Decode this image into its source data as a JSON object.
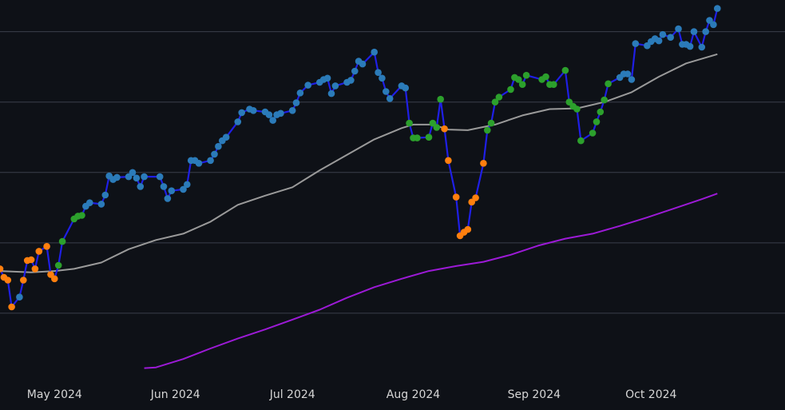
{
  "chart_data": {
    "type": "line",
    "title": "",
    "xlabel": "",
    "ylabel": "",
    "grid": "horizontal",
    "legend": "none",
    "x_ticks": [
      {
        "date": "2024-05-01",
        "label": "May 2024"
      },
      {
        "date": "2024-06-01",
        "label": "Jun 2024"
      },
      {
        "date": "2024-07-01",
        "label": "Jul 2024"
      },
      {
        "date": "2024-08-01",
        "label": "Aug 2024"
      },
      {
        "date": "2024-09-01",
        "label": "Sep 2024"
      },
      {
        "date": "2024-10-01",
        "label": "Oct 2024"
      }
    ],
    "xlim": [
      "2024-04-17",
      "2024-10-29"
    ],
    "y_gridlines": [
      1,
      2,
      3,
      4,
      5
    ],
    "ylim": [
      0,
      5.45
    ],
    "point_color_key": {
      "b": "#2b7bb9",
      "g": "#2ca02c",
      "o": "#ff7f0e"
    },
    "series": [
      {
        "role": "price",
        "color": "#1f1fe6",
        "with_points": true,
        "points": [
          [
            "2024-04-17",
            1.63,
            "o"
          ],
          [
            "2024-04-18",
            1.51,
            "o"
          ],
          [
            "2024-04-19",
            1.47,
            "o"
          ],
          [
            "2024-04-20",
            1.09,
            "o"
          ],
          [
            "2024-04-22",
            1.23,
            "b"
          ],
          [
            "2024-04-23",
            1.47,
            "o"
          ],
          [
            "2024-04-24",
            1.75,
            "o"
          ],
          [
            "2024-04-25",
            1.76,
            "o"
          ],
          [
            "2024-04-26",
            1.63,
            "o"
          ],
          [
            "2024-04-27",
            1.88,
            "o"
          ],
          [
            "2024-04-29",
            1.95,
            "o"
          ],
          [
            "2024-04-30",
            1.55,
            "o"
          ],
          [
            "2024-05-01",
            1.49,
            "o"
          ],
          [
            "2024-05-02",
            1.68,
            "g"
          ],
          [
            "2024-05-03",
            2.02,
            "g"
          ],
          [
            "2024-05-06",
            2.34,
            "g"
          ],
          [
            "2024-05-07",
            2.38,
            "g"
          ],
          [
            "2024-05-08",
            2.39,
            "g"
          ],
          [
            "2024-05-09",
            2.52,
            "b"
          ],
          [
            "2024-05-10",
            2.57,
            "b"
          ],
          [
            "2024-05-13",
            2.55,
            "b"
          ],
          [
            "2024-05-14",
            2.68,
            "b"
          ],
          [
            "2024-05-15",
            2.95,
            "b"
          ],
          [
            "2024-05-16",
            2.9,
            "b"
          ],
          [
            "2024-05-17",
            2.93,
            "b"
          ],
          [
            "2024-05-20",
            2.94,
            "b"
          ],
          [
            "2024-05-21",
            3.0,
            "b"
          ],
          [
            "2024-05-22",
            2.92,
            "b"
          ],
          [
            "2024-05-23",
            2.8,
            "b"
          ],
          [
            "2024-05-24",
            2.94,
            "b"
          ],
          [
            "2024-05-28",
            2.94,
            "b"
          ],
          [
            "2024-05-29",
            2.8,
            "b"
          ],
          [
            "2024-05-30",
            2.63,
            "b"
          ],
          [
            "2024-05-31",
            2.74,
            "b"
          ],
          [
            "2024-06-03",
            2.76,
            "b"
          ],
          [
            "2024-06-04",
            2.83,
            "b"
          ],
          [
            "2024-06-05",
            3.17,
            "b"
          ],
          [
            "2024-06-06",
            3.17,
            "b"
          ],
          [
            "2024-06-07",
            3.13,
            "b"
          ],
          [
            "2024-06-10",
            3.17,
            "b"
          ],
          [
            "2024-06-11",
            3.26,
            "b"
          ],
          [
            "2024-06-12",
            3.37,
            "b"
          ],
          [
            "2024-06-13",
            3.45,
            "b"
          ],
          [
            "2024-06-14",
            3.5,
            "b"
          ],
          [
            "2024-06-17",
            3.72,
            "b"
          ],
          [
            "2024-06-18",
            3.85,
            "b"
          ],
          [
            "2024-06-20",
            3.9,
            "b"
          ],
          [
            "2024-06-21",
            3.88,
            "b"
          ],
          [
            "2024-06-24",
            3.86,
            "b"
          ],
          [
            "2024-06-25",
            3.82,
            "b"
          ],
          [
            "2024-06-26",
            3.74,
            "b"
          ],
          [
            "2024-06-27",
            3.82,
            "b"
          ],
          [
            "2024-06-28",
            3.84,
            "b"
          ],
          [
            "2024-07-01",
            3.88,
            "b"
          ],
          [
            "2024-07-02",
            3.99,
            "b"
          ],
          [
            "2024-07-03",
            4.13,
            "b"
          ],
          [
            "2024-07-05",
            4.24,
            "b"
          ],
          [
            "2024-07-08",
            4.28,
            "b"
          ],
          [
            "2024-07-09",
            4.32,
            "b"
          ],
          [
            "2024-07-10",
            4.34,
            "b"
          ],
          [
            "2024-07-11",
            4.12,
            "b"
          ],
          [
            "2024-07-12",
            4.23,
            "b"
          ],
          [
            "2024-07-15",
            4.28,
            "b"
          ],
          [
            "2024-07-16",
            4.31,
            "b"
          ],
          [
            "2024-07-17",
            4.44,
            "b"
          ],
          [
            "2024-07-18",
            4.58,
            "b"
          ],
          [
            "2024-07-19",
            4.54,
            "b"
          ],
          [
            "2024-07-22",
            4.71,
            "b"
          ],
          [
            "2024-07-23",
            4.42,
            "b"
          ],
          [
            "2024-07-24",
            4.34,
            "b"
          ],
          [
            "2024-07-25",
            4.15,
            "b"
          ],
          [
            "2024-07-26",
            4.05,
            "b"
          ],
          [
            "2024-07-29",
            4.23,
            "b"
          ],
          [
            "2024-07-30",
            4.2,
            "b"
          ],
          [
            "2024-07-31",
            3.7,
            "g"
          ],
          [
            "2024-08-01",
            3.49,
            "g"
          ],
          [
            "2024-08-02",
            3.49,
            "g"
          ],
          [
            "2024-08-05",
            3.5,
            "g"
          ],
          [
            "2024-08-06",
            3.7,
            "g"
          ],
          [
            "2024-08-07",
            3.64,
            "g"
          ],
          [
            "2024-08-08",
            4.04,
            "g"
          ],
          [
            "2024-08-09",
            3.62,
            "o"
          ],
          [
            "2024-08-10",
            3.17,
            "o"
          ],
          [
            "2024-08-12",
            2.65,
            "o"
          ],
          [
            "2024-08-13",
            2.1,
            "o"
          ],
          [
            "2024-08-14",
            2.15,
            "o"
          ],
          [
            "2024-08-15",
            2.19,
            "o"
          ],
          [
            "2024-08-16",
            2.58,
            "o"
          ],
          [
            "2024-08-17",
            2.64,
            "o"
          ],
          [
            "2024-08-19",
            3.13,
            "o"
          ],
          [
            "2024-08-20",
            3.6,
            "g"
          ],
          [
            "2024-08-21",
            3.7,
            "g"
          ],
          [
            "2024-08-22",
            4.0,
            "g"
          ],
          [
            "2024-08-23",
            4.07,
            "g"
          ],
          [
            "2024-08-26",
            4.18,
            "g"
          ],
          [
            "2024-08-27",
            4.35,
            "g"
          ],
          [
            "2024-08-28",
            4.32,
            "g"
          ],
          [
            "2024-08-29",
            4.25,
            "g"
          ],
          [
            "2024-08-30",
            4.38,
            "g"
          ],
          [
            "2024-09-03",
            4.32,
            "g"
          ],
          [
            "2024-09-04",
            4.36,
            "g"
          ],
          [
            "2024-09-05",
            4.25,
            "g"
          ],
          [
            "2024-09-06",
            4.25,
            "g"
          ],
          [
            "2024-09-09",
            4.45,
            "g"
          ],
          [
            "2024-09-10",
            4.0,
            "g"
          ],
          [
            "2024-09-11",
            3.94,
            "g"
          ],
          [
            "2024-09-12",
            3.9,
            "g"
          ],
          [
            "2024-09-13",
            3.45,
            "g"
          ],
          [
            "2024-09-16",
            3.56,
            "g"
          ],
          [
            "2024-09-17",
            3.72,
            "g"
          ],
          [
            "2024-09-18",
            3.86,
            "g"
          ],
          [
            "2024-09-19",
            4.03,
            "g"
          ],
          [
            "2024-09-20",
            4.26,
            "g"
          ],
          [
            "2024-09-23",
            4.35,
            "b"
          ],
          [
            "2024-09-24",
            4.4,
            "b"
          ],
          [
            "2024-09-25",
            4.4,
            "b"
          ],
          [
            "2024-09-26",
            4.32,
            "b"
          ],
          [
            "2024-09-27",
            4.83,
            "b"
          ],
          [
            "2024-09-30",
            4.8,
            "b"
          ],
          [
            "2024-10-01",
            4.86,
            "b"
          ],
          [
            "2024-10-02",
            4.9,
            "b"
          ],
          [
            "2024-10-03",
            4.87,
            "b"
          ],
          [
            "2024-10-04",
            4.96,
            "b"
          ],
          [
            "2024-10-06",
            4.92,
            "b"
          ],
          [
            "2024-10-08",
            5.04,
            "b"
          ],
          [
            "2024-10-09",
            4.82,
            "b"
          ],
          [
            "2024-10-10",
            4.82,
            "b"
          ],
          [
            "2024-10-11",
            4.79,
            "b"
          ],
          [
            "2024-10-12",
            5.0,
            "b"
          ],
          [
            "2024-10-14",
            4.78,
            "b"
          ],
          [
            "2024-10-15",
            5.0,
            "b"
          ],
          [
            "2024-10-16",
            5.16,
            "b"
          ],
          [
            "2024-10-17",
            5.1,
            "b"
          ],
          [
            "2024-10-18",
            5.33,
            "b"
          ]
        ]
      },
      {
        "role": "moving-average-fast",
        "color": "#9a9a9a",
        "with_points": false,
        "points": [
          [
            "2024-04-17",
            1.6
          ],
          [
            "2024-04-25",
            1.58
          ],
          [
            "2024-05-01",
            1.6
          ],
          [
            "2024-05-06",
            1.63
          ],
          [
            "2024-05-13",
            1.72
          ],
          [
            "2024-05-20",
            1.91
          ],
          [
            "2024-05-27",
            2.04
          ],
          [
            "2024-06-03",
            2.13
          ],
          [
            "2024-06-10",
            2.3
          ],
          [
            "2024-06-17",
            2.54
          ],
          [
            "2024-06-24",
            2.67
          ],
          [
            "2024-07-01",
            2.79
          ],
          [
            "2024-07-08",
            3.03
          ],
          [
            "2024-07-15",
            3.25
          ],
          [
            "2024-07-22",
            3.47
          ],
          [
            "2024-07-29",
            3.63
          ],
          [
            "2024-08-01",
            3.68
          ],
          [
            "2024-08-06",
            3.68
          ],
          [
            "2024-08-10",
            3.61
          ],
          [
            "2024-08-15",
            3.6
          ],
          [
            "2024-08-22",
            3.68
          ],
          [
            "2024-08-29",
            3.81
          ],
          [
            "2024-09-05",
            3.9
          ],
          [
            "2024-09-12",
            3.91
          ],
          [
            "2024-09-19",
            4.0
          ],
          [
            "2024-09-26",
            4.14
          ],
          [
            "2024-10-03",
            4.36
          ],
          [
            "2024-10-10",
            4.55
          ],
          [
            "2024-10-18",
            4.68
          ]
        ]
      },
      {
        "role": "moving-average-slow",
        "color": "#9c1ad6",
        "with_points": false,
        "points": [
          [
            "2024-05-24",
            0.22
          ],
          [
            "2024-05-27",
            0.23
          ],
          [
            "2024-06-03",
            0.35
          ],
          [
            "2024-06-10",
            0.5
          ],
          [
            "2024-06-17",
            0.64
          ],
          [
            "2024-06-24",
            0.77
          ],
          [
            "2024-07-01",
            0.91
          ],
          [
            "2024-07-08",
            1.05
          ],
          [
            "2024-07-15",
            1.22
          ],
          [
            "2024-07-22",
            1.37
          ],
          [
            "2024-07-29",
            1.49
          ],
          [
            "2024-08-05",
            1.6
          ],
          [
            "2024-08-12",
            1.67
          ],
          [
            "2024-08-19",
            1.73
          ],
          [
            "2024-08-26",
            1.83
          ],
          [
            "2024-09-02",
            1.96
          ],
          [
            "2024-09-09",
            2.06
          ],
          [
            "2024-09-16",
            2.13
          ],
          [
            "2024-09-23",
            2.24
          ],
          [
            "2024-09-30",
            2.36
          ],
          [
            "2024-10-07",
            2.49
          ],
          [
            "2024-10-14",
            2.62
          ],
          [
            "2024-10-18",
            2.7
          ]
        ]
      }
    ]
  }
}
